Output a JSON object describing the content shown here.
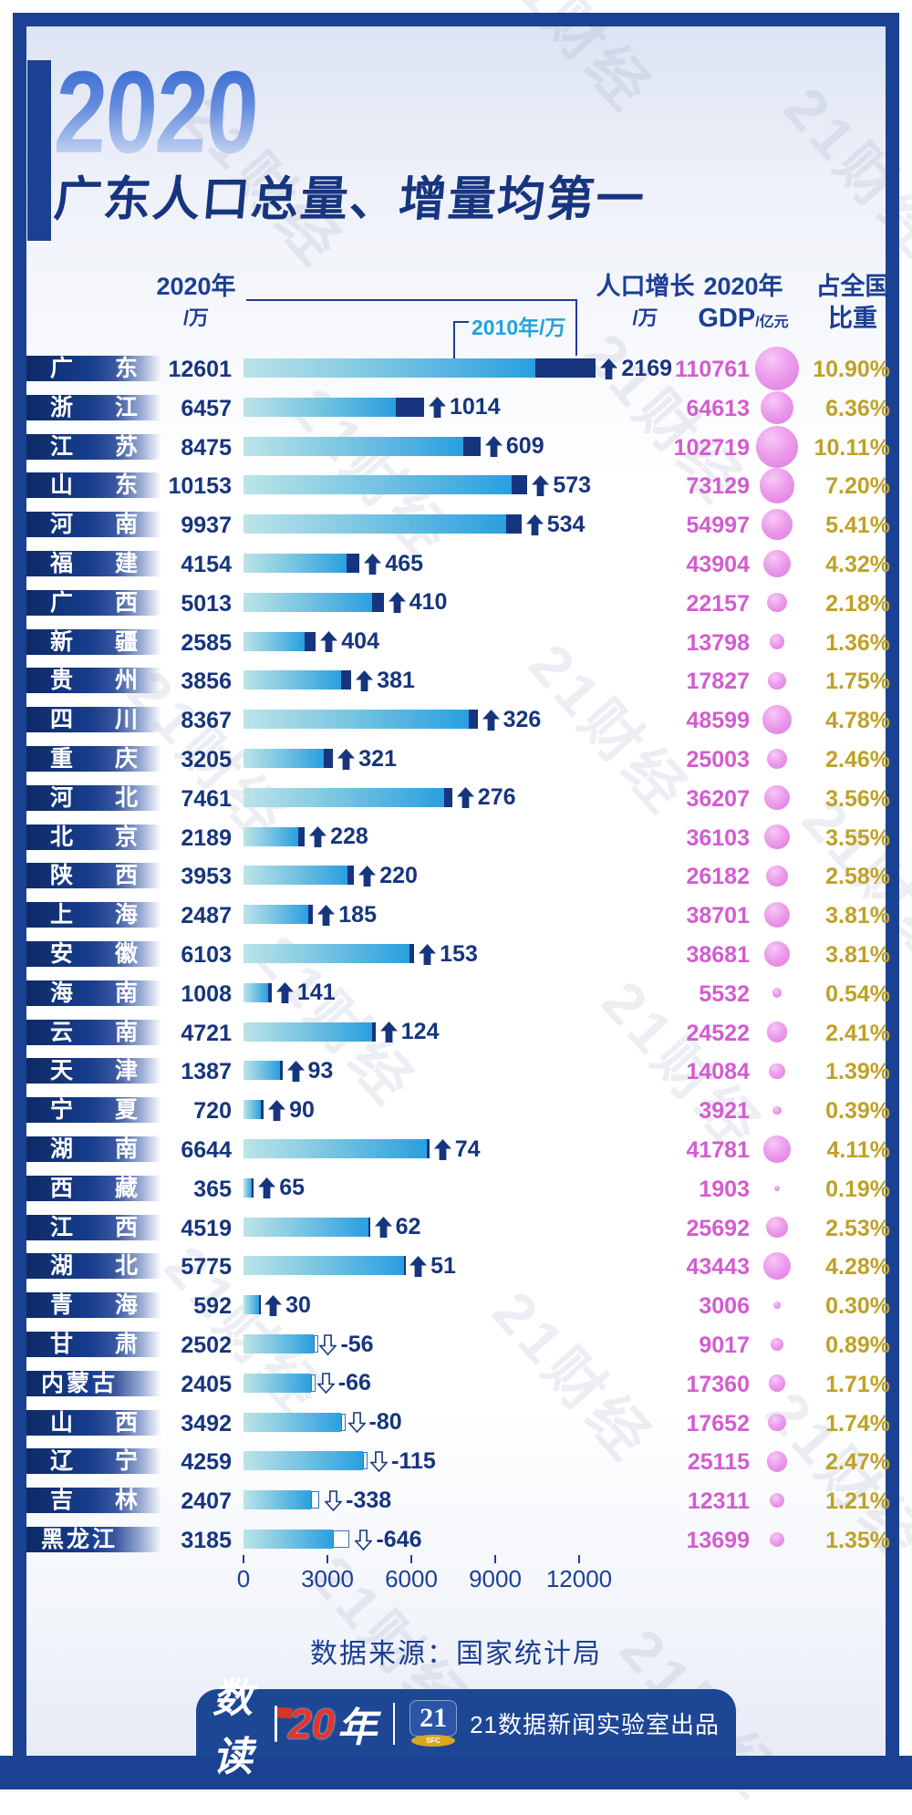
{
  "page": {
    "year_badge": "2020",
    "title": "广东人口总量、增量均第一",
    "watermark": "21财经",
    "source": "数据来源：国家统计局",
    "footer": {
      "logo_prefix": "数读",
      "logo_year": "20",
      "logo_suffix": "年",
      "badge_number": "21",
      "badge_sub": "SFC",
      "credit": "21数据新闻实验室出品"
    }
  },
  "columns": {
    "pop2020": {
      "line1": "2020年",
      "line2": "/万"
    },
    "pop2010_label": "2010年/万",
    "growth": {
      "line1": "人口增长",
      "line2": "/万"
    },
    "gdp": {
      "line1": "2020年",
      "gdp_text": "GDP",
      "unit": "/亿元"
    },
    "share": {
      "line1": "占全国",
      "line2": "比重"
    }
  },
  "colors": {
    "frame": "#1b4193",
    "navy": "#16357e",
    "header_navy": "#1c3f96",
    "cyan_label": "#23a2dc",
    "bar_cyan_start": "#bce4e8",
    "bar_cyan_end": "#2a9fe0",
    "bar_delta": "#16357e",
    "gdp_magenta": "#d35cd0",
    "bubble_pink": "#e583e5",
    "percent_gold": "#bfa126",
    "logo_red": "#e3352b",
    "badge_gold": "#d9a71c"
  },
  "chart_data": {
    "type": "bar",
    "title": "2020 广东人口总量、增量均第一",
    "x_axis": {
      "ticks": [
        0,
        3000,
        6000,
        9000,
        12000
      ],
      "range": [
        0,
        12000
      ],
      "unit": "万"
    },
    "legend": "横条 = 2010年人口(浅蓝) 至 2020年人口(深蓝增量 / 白框减量)；气泡大小 = 占全国比重",
    "rows": [
      {
        "province": "广东",
        "pop2020": 12601,
        "growth": 2169,
        "gdp": 110761,
        "share": "10.90%"
      },
      {
        "province": "浙江",
        "pop2020": 6457,
        "growth": 1014,
        "gdp": 64613,
        "share": "6.36%"
      },
      {
        "province": "江苏",
        "pop2020": 8475,
        "growth": 609,
        "gdp": 102719,
        "share": "10.11%"
      },
      {
        "province": "山东",
        "pop2020": 10153,
        "growth": 573,
        "gdp": 73129,
        "share": "7.20%"
      },
      {
        "province": "河南",
        "pop2020": 9937,
        "growth": 534,
        "gdp": 54997,
        "share": "5.41%"
      },
      {
        "province": "福建",
        "pop2020": 4154,
        "growth": 465,
        "gdp": 43904,
        "share": "4.32%"
      },
      {
        "province": "广西",
        "pop2020": 5013,
        "growth": 410,
        "gdp": 22157,
        "share": "2.18%"
      },
      {
        "province": "新疆",
        "pop2020": 2585,
        "growth": 404,
        "gdp": 13798,
        "share": "1.36%"
      },
      {
        "province": "贵州",
        "pop2020": 3856,
        "growth": 381,
        "gdp": 17827,
        "share": "1.75%"
      },
      {
        "province": "四川",
        "pop2020": 8367,
        "growth": 326,
        "gdp": 48599,
        "share": "4.78%"
      },
      {
        "province": "重庆",
        "pop2020": 3205,
        "growth": 321,
        "gdp": 25003,
        "share": "2.46%"
      },
      {
        "province": "河北",
        "pop2020": 7461,
        "growth": 276,
        "gdp": 36207,
        "share": "3.56%"
      },
      {
        "province": "北京",
        "pop2020": 2189,
        "growth": 228,
        "gdp": 36103,
        "share": "3.55%"
      },
      {
        "province": "陕西",
        "pop2020": 3953,
        "growth": 220,
        "gdp": 26182,
        "share": "2.58%"
      },
      {
        "province": "上海",
        "pop2020": 2487,
        "growth": 185,
        "gdp": 38701,
        "share": "3.81%"
      },
      {
        "province": "安徽",
        "pop2020": 6103,
        "growth": 153,
        "gdp": 38681,
        "share": "3.81%"
      },
      {
        "province": "海南",
        "pop2020": 1008,
        "growth": 141,
        "gdp": 5532,
        "share": "0.54%"
      },
      {
        "province": "云南",
        "pop2020": 4721,
        "growth": 124,
        "gdp": 24522,
        "share": "2.41%"
      },
      {
        "province": "天津",
        "pop2020": 1387,
        "growth": 93,
        "gdp": 14084,
        "share": "1.39%"
      },
      {
        "province": "宁夏",
        "pop2020": 720,
        "growth": 90,
        "gdp": 3921,
        "share": "0.39%"
      },
      {
        "province": "湖南",
        "pop2020": 6644,
        "growth": 74,
        "gdp": 41781,
        "share": "4.11%"
      },
      {
        "province": "西藏",
        "pop2020": 365,
        "growth": 65,
        "gdp": 1903,
        "share": "0.19%"
      },
      {
        "province": "江西",
        "pop2020": 4519,
        "growth": 62,
        "gdp": 25692,
        "share": "2.53%"
      },
      {
        "province": "湖北",
        "pop2020": 5775,
        "growth": 51,
        "gdp": 43443,
        "share": "4.28%"
      },
      {
        "province": "青海",
        "pop2020": 592,
        "growth": 30,
        "gdp": 3006,
        "share": "0.30%"
      },
      {
        "province": "甘肃",
        "pop2020": 2502,
        "growth": -56,
        "gdp": 9017,
        "share": "0.89%"
      },
      {
        "province": "内蒙古",
        "pop2020": 2405,
        "growth": -66,
        "gdp": 17360,
        "share": "1.71%"
      },
      {
        "province": "山西",
        "pop2020": 3492,
        "growth": -80,
        "gdp": 17652,
        "share": "1.74%"
      },
      {
        "province": "辽宁",
        "pop2020": 4259,
        "growth": -115,
        "gdp": 25115,
        "share": "2.47%"
      },
      {
        "province": "吉林",
        "pop2020": 2407,
        "growth": -338,
        "gdp": 12311,
        "share": "1.21%"
      },
      {
        "province": "黑龙江",
        "pop2020": 3185,
        "growth": -646,
        "gdp": 13699,
        "share": "1.35%"
      }
    ]
  }
}
